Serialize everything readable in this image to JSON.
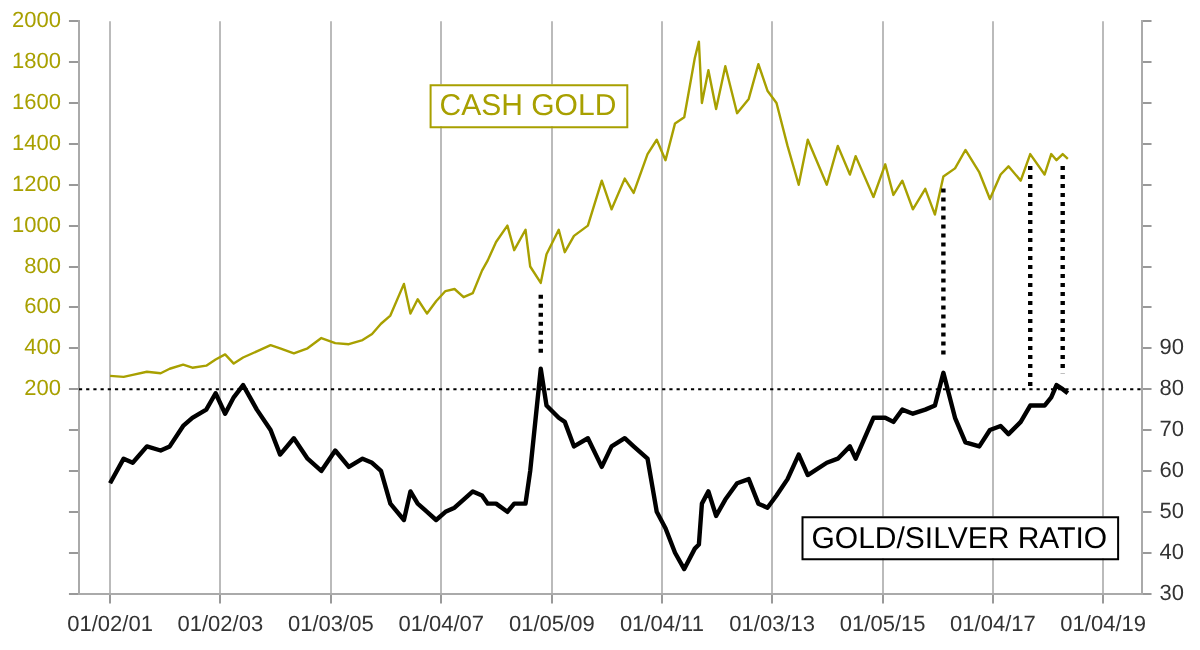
{
  "chart_data": {
    "type": "line",
    "x": [
      "2001-01-02",
      "2001-04-02",
      "2001-06-01",
      "2001-09-03",
      "2001-12-03",
      "2002-02-01",
      "2002-05-01",
      "2002-07-01",
      "2002-10-01",
      "2002-12-02",
      "2003-02-03",
      "2003-04-01",
      "2003-06-02",
      "2003-09-01",
      "2003-12-01",
      "2004-02-02",
      "2004-05-03",
      "2004-08-02",
      "2004-11-01",
      "2005-02-01",
      "2005-05-02",
      "2005-08-01",
      "2005-10-03",
      "2005-12-01",
      "2006-02-01",
      "2006-05-02",
      "2006-06-14",
      "2006-08-01",
      "2006-10-02",
      "2006-12-01",
      "2007-02-01",
      "2007-04-02",
      "2007-06-01",
      "2007-08-01",
      "2007-10-01",
      "2007-11-08",
      "2008-01-02",
      "2008-03-17",
      "2008-05-01",
      "2008-07-15",
      "2008-08-15",
      "2008-10-24",
      "2008-12-01",
      "2009-02-20",
      "2009-04-01",
      "2009-06-01",
      "2009-09-01",
      "2009-12-02",
      "2010-02-05",
      "2010-05-03",
      "2010-07-01",
      "2010-10-01",
      "2010-12-01",
      "2011-01-28",
      "2011-04-01",
      "2011-06-01",
      "2011-08-10",
      "2011-09-06",
      "2011-09-26",
      "2011-11-08",
      "2011-12-29",
      "2012-02-28",
      "2012-05-16",
      "2012-08-01",
      "2012-10-04",
      "2012-12-03",
      "2013-02-01",
      "2013-04-15",
      "2013-06-28",
      "2013-08-27",
      "2013-12-31",
      "2014-03-14",
      "2014-06-02",
      "2014-07-10",
      "2014-11-05",
      "2015-01-22",
      "2015-03-17",
      "2015-05-15",
      "2015-07-24",
      "2015-10-14",
      "2015-12-17",
      "2016-02-11",
      "2016-04-28",
      "2016-07-06",
      "2016-10-06",
      "2016-12-15",
      "2017-02-24",
      "2017-04-17",
      "2017-07-07",
      "2017-09-08",
      "2017-12-12",
      "2018-01-25",
      "2018-03-01",
      "2018-04-11",
      "2018-05-15"
    ],
    "ylim": [
      -800,
      2000
    ],
    "yticks": [
      {
        "value": -800,
        "label": null
      },
      {
        "value": -600,
        "label": null
      },
      {
        "value": -400,
        "label": null
      },
      {
        "value": -200,
        "label": null
      },
      {
        "value": 0,
        "label": null
      },
      200,
      400,
      600,
      800,
      1000,
      1200,
      1400,
      1600,
      1800,
      2000
    ],
    "y2lim": [
      30,
      170
    ],
    "y2ticks": [
      30,
      40,
      50,
      60,
      70,
      80,
      90,
      {
        "value": 100,
        "label": null
      },
      {
        "value": 110,
        "label": null
      },
      {
        "value": 120,
        "label": null
      },
      {
        "value": 130,
        "label": null
      },
      {
        "value": 140,
        "label": null
      },
      {
        "value": 150,
        "label": null
      },
      {
        "value": 160,
        "label": null
      },
      {
        "value": 170,
        "label": null
      }
    ],
    "xlim": [
      "2000-06-10",
      "2019-09-15"
    ],
    "xticks": [
      {
        "value": "2001-01-02",
        "label": "01/02/01"
      },
      {
        "value": "2003-01-02",
        "label": "01/02/03"
      },
      {
        "value": "2005-01-03",
        "label": "01/03/05"
      },
      {
        "value": "2007-01-04",
        "label": "01/04/07"
      },
      {
        "value": "2009-01-05",
        "label": "01/05/09"
      },
      {
        "value": "2011-01-04",
        "label": "01/04/11"
      },
      {
        "value": "2013-01-03",
        "label": "01/03/13"
      },
      {
        "value": "2015-01-05",
        "label": "01/05/15"
      },
      {
        "value": "2017-01-04",
        "label": "01/04/17"
      },
      {
        "value": "2019-01-04",
        "label": "01/04/19"
      }
    ],
    "series": [
      {
        "name": "CASH GOLD",
        "color": "#a8a000",
        "values": [
          265,
          260,
          270,
          285,
          278,
          300,
          320,
          305,
          315,
          345,
          370,
          325,
          355,
          385,
          415,
          400,
          375,
          400,
          450,
          425,
          420,
          440,
          470,
          520,
          560,
          715,
          570,
          640,
          570,
          630,
          680,
          690,
          650,
          670,
          780,
          830,
          920,
          1000,
          880,
          980,
          800,
          720,
          860,
          980,
          870,
          950,
          1000,
          1220,
          1080,
          1230,
          1160,
          1350,
          1420,
          1320,
          1500,
          1530,
          1820,
          1900,
          1600,
          1760,
          1570,
          1780,
          1550,
          1620,
          1790,
          1660,
          1600,
          1390,
          1200,
          1420,
          1200,
          1390,
          1250,
          1340,
          1140,
          1300,
          1150,
          1220,
          1080,
          1180,
          1054,
          1240,
          1280,
          1370,
          1260,
          1130,
          1250,
          1290,
          1220,
          1350,
          1250,
          1350,
          1320,
          1350,
          1327
        ]
      },
      {
        "name": "GOLD/SILVER RATIO",
        "color": "#000000",
        "axis": "y2",
        "values": [
          57,
          63,
          62,
          66,
          65,
          66,
          71,
          73,
          75,
          79,
          74,
          78,
          81,
          75,
          70,
          64,
          68,
          63,
          60,
          65,
          61,
          63,
          62,
          60,
          52,
          48,
          55,
          52,
          50,
          48,
          50,
          51,
          53,
          55,
          54,
          52,
          52,
          50,
          52,
          52,
          60,
          85,
          76,
          73,
          72,
          66,
          68,
          61,
          66,
          68,
          66,
          63,
          50,
          46,
          40,
          36,
          41,
          42,
          52,
          55,
          49,
          53,
          57,
          58,
          52,
          51,
          54,
          58,
          64,
          59,
          62,
          63,
          66,
          63,
          73,
          73,
          72,
          75,
          74,
          75,
          76,
          84,
          73,
          67,
          66,
          70,
          71,
          69,
          72,
          76,
          76,
          78,
          81,
          80,
          79
        ]
      }
    ],
    "ref_lines": [
      {
        "axis": "y2",
        "value": 80,
        "color": "#000000",
        "line_style": "dotted"
      },
      {
        "axis": "x",
        "value": "2008-10-24",
        "color": "#000000",
        "line_style": "dotted"
      },
      {
        "axis": "x",
        "value": "2016-02-11",
        "color": "#000000",
        "line_style": "dotted"
      },
      {
        "axis": "x",
        "value": "2017-09-08",
        "color": "#000000",
        "line_style": "dotted"
      },
      {
        "axis": "x",
        "value": "2018-04-11",
        "color": "#000000",
        "line_style": "dotted"
      }
    ],
    "grid": "x",
    "legend": false,
    "marker": "none",
    "line_style": "solid"
  }
}
